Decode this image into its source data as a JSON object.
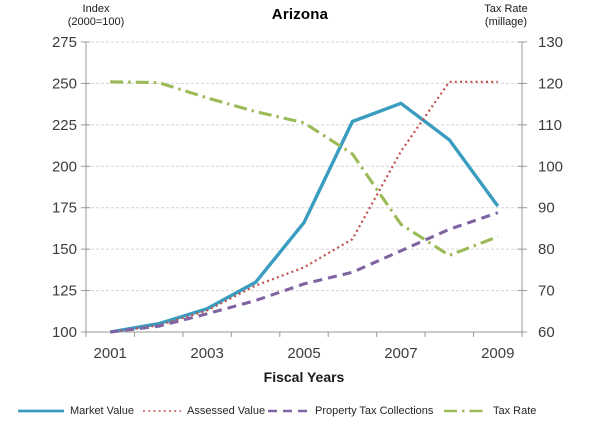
{
  "title": "Arizona",
  "left_axis": {
    "label_line1": "Index",
    "label_line2": "(2000=100)",
    "min": 100,
    "max": 275,
    "step": 25,
    "tick_labels": [
      "275",
      "250",
      "225",
      "200",
      "175",
      "150",
      "125",
      "100"
    ]
  },
  "right_axis": {
    "label_line1": "Tax Rate",
    "label_line2": "(millage)",
    "min": 60,
    "max": 130,
    "step": 10,
    "tick_labels": [
      "130",
      "120",
      "110",
      "100",
      "90",
      "80",
      "70",
      "60"
    ]
  },
  "x_axis": {
    "label": "Fiscal Years",
    "tick_labels": [
      "2001",
      "2003",
      "2005",
      "2007",
      "2009"
    ]
  },
  "chart_data": {
    "type": "line",
    "title": "Arizona",
    "xlabel": "Fiscal Years",
    "ylabel_left": "Index (2000=100)",
    "ylabel_right": "Tax Rate (millage)",
    "ylim_left": [
      100,
      275
    ],
    "ylim_right": [
      60,
      130
    ],
    "grid": true,
    "legend_position": "bottom",
    "x": [
      2001,
      2002,
      2003,
      2004,
      2005,
      2006,
      2007,
      2008,
      2009
    ],
    "x_tick_labels_shown": [
      2001,
      2003,
      2005,
      2007,
      2009
    ],
    "series": [
      {
        "name": "Market Value",
        "axis": "left",
        "color": "#3a9dc0",
        "style": "solid",
        "values": [
          100,
          105,
          114,
          130,
          166,
          227,
          238,
          216,
          176
        ]
      },
      {
        "name": "Assessed Value",
        "axis": "left",
        "color": "#c0504d",
        "style": "dotted",
        "values": [
          100,
          104,
          113,
          128,
          139,
          156,
          209,
          251,
          251
        ]
      },
      {
        "name": "Property Tax Collections",
        "axis": "left",
        "color": "#8064a2",
        "style": "dashed",
        "values": [
          100,
          103.5,
          111,
          119,
          129,
          136,
          149,
          162,
          172
        ]
      },
      {
        "name": "Tax Rate",
        "axis": "right",
        "color": "#9bbb59",
        "style": "dashdot",
        "values": [
          120.4,
          120.2,
          116.5,
          113.2,
          110.5,
          103,
          86,
          78.5,
          83
        ]
      }
    ]
  },
  "colors": {
    "grid": "#d4d4d4",
    "axis": "#9a9a9a",
    "tick_text": "#3d3d3d"
  }
}
